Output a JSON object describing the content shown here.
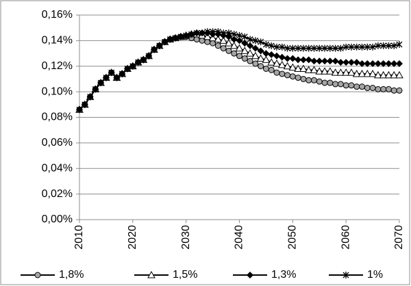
{
  "chart_data": {
    "type": "line",
    "x": [
      2010,
      2011,
      2012,
      2013,
      2014,
      2015,
      2016,
      2017,
      2018,
      2019,
      2020,
      2021,
      2022,
      2023,
      2024,
      2025,
      2026,
      2027,
      2028,
      2029,
      2030,
      2031,
      2032,
      2033,
      2034,
      2035,
      2036,
      2037,
      2038,
      2039,
      2040,
      2041,
      2042,
      2043,
      2044,
      2045,
      2046,
      2047,
      2048,
      2049,
      2050,
      2051,
      2052,
      2053,
      2054,
      2055,
      2056,
      2057,
      2058,
      2059,
      2060,
      2061,
      2062,
      2063,
      2064,
      2065,
      2066,
      2067,
      2068,
      2069,
      2070
    ],
    "series": [
      {
        "name": "1,8%",
        "color": "#000000",
        "marker": "circle",
        "values": [
          0.086,
          0.09,
          0.096,
          0.102,
          0.107,
          0.111,
          0.115,
          0.111,
          0.114,
          0.118,
          0.12,
          0.123,
          0.125,
          0.128,
          0.133,
          0.136,
          0.139,
          0.141,
          0.142,
          0.143,
          0.143,
          0.142,
          0.141,
          0.14,
          0.139,
          0.138,
          0.136,
          0.134,
          0.132,
          0.13,
          0.128,
          0.126,
          0.124,
          0.122,
          0.12,
          0.118,
          0.117,
          0.115,
          0.114,
          0.113,
          0.112,
          0.111,
          0.11,
          0.109,
          0.109,
          0.108,
          0.107,
          0.107,
          0.106,
          0.106,
          0.105,
          0.105,
          0.104,
          0.104,
          0.103,
          0.103,
          0.102,
          0.102,
          0.102,
          0.101,
          0.101
        ]
      },
      {
        "name": "1,5%",
        "color": "#000000",
        "marker": "triangle",
        "values": [
          0.086,
          0.09,
          0.096,
          0.102,
          0.107,
          0.111,
          0.115,
          0.111,
          0.114,
          0.118,
          0.12,
          0.123,
          0.125,
          0.128,
          0.133,
          0.136,
          0.139,
          0.141,
          0.142,
          0.143,
          0.144,
          0.145,
          0.145,
          0.144,
          0.143,
          0.142,
          0.141,
          0.14,
          0.138,
          0.136,
          0.134,
          0.132,
          0.13,
          0.128,
          0.126,
          0.125,
          0.123,
          0.122,
          0.121,
          0.12,
          0.119,
          0.118,
          0.118,
          0.117,
          0.117,
          0.116,
          0.116,
          0.116,
          0.115,
          0.115,
          0.115,
          0.115,
          0.114,
          0.114,
          0.114,
          0.114,
          0.113,
          0.113,
          0.113,
          0.113,
          0.113
        ]
      },
      {
        "name": "1,3%",
        "color": "#000000",
        "marker": "diamond",
        "values": [
          0.086,
          0.09,
          0.096,
          0.102,
          0.107,
          0.111,
          0.115,
          0.111,
          0.114,
          0.118,
          0.12,
          0.123,
          0.125,
          0.128,
          0.133,
          0.136,
          0.139,
          0.141,
          0.142,
          0.143,
          0.144,
          0.145,
          0.146,
          0.146,
          0.146,
          0.145,
          0.145,
          0.144,
          0.143,
          0.141,
          0.14,
          0.138,
          0.136,
          0.134,
          0.132,
          0.13,
          0.129,
          0.128,
          0.127,
          0.126,
          0.126,
          0.125,
          0.125,
          0.125,
          0.124,
          0.124,
          0.124,
          0.124,
          0.124,
          0.123,
          0.123,
          0.123,
          0.123,
          0.122,
          0.122,
          0.122,
          0.122,
          0.122,
          0.122,
          0.122,
          0.122
        ]
      },
      {
        "name": "1%",
        "color": "#000000",
        "marker": "asterisk",
        "values": [
          0.086,
          0.09,
          0.096,
          0.102,
          0.107,
          0.111,
          0.115,
          0.111,
          0.114,
          0.118,
          0.12,
          0.123,
          0.125,
          0.128,
          0.133,
          0.136,
          0.139,
          0.141,
          0.142,
          0.143,
          0.144,
          0.145,
          0.146,
          0.146,
          0.147,
          0.147,
          0.147,
          0.146,
          0.146,
          0.145,
          0.144,
          0.143,
          0.141,
          0.14,
          0.139,
          0.137,
          0.136,
          0.135,
          0.135,
          0.134,
          0.134,
          0.134,
          0.134,
          0.134,
          0.134,
          0.134,
          0.134,
          0.134,
          0.134,
          0.134,
          0.135,
          0.135,
          0.135,
          0.135,
          0.135,
          0.135,
          0.136,
          0.136,
          0.136,
          0.136,
          0.137
        ]
      }
    ],
    "xlim": [
      2010,
      2070
    ],
    "xticks": [
      2010,
      2020,
      2030,
      2040,
      2050,
      2060,
      2070
    ],
    "ylim": [
      0,
      0.16
    ],
    "yticks": [
      {
        "value": 0,
        "label": "0,00%"
      },
      {
        "value": 0.02,
        "label": "0,02%"
      },
      {
        "value": 0.04,
        "label": "0,04%"
      },
      {
        "value": 0.06,
        "label": "0,06%"
      },
      {
        "value": 0.08,
        "label": "0,08%"
      },
      {
        "value": 0.1,
        "label": "0,10%"
      },
      {
        "value": 0.12,
        "label": "0,12%"
      },
      {
        "value": 0.14,
        "label": "0,14%"
      },
      {
        "value": 0.16,
        "label": "0,16%"
      }
    ],
    "grid": true,
    "legend": "bottom"
  }
}
